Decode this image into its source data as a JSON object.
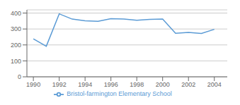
{
  "chart_data": {
    "type": "line",
    "x": [
      1990,
      1991,
      1992,
      1993,
      1994,
      1995,
      1996,
      1997,
      1998,
      1999,
      2000,
      2001,
      2002,
      2003,
      2004
    ],
    "series": [
      {
        "name": "Bristol-farmington Elementary School",
        "color": "#5b9bd5",
        "values": [
          238,
          192,
          395,
          362,
          352,
          348,
          365,
          362,
          355,
          360,
          362,
          273,
          278,
          272,
          298
        ]
      }
    ],
    "xlim": [
      1989.5,
      2005.0
    ],
    "ylim": [
      0,
      420
    ],
    "xticks": [
      1990,
      1992,
      1994,
      1996,
      1998,
      2000,
      2002,
      2004
    ],
    "yticks": [
      0,
      100,
      200,
      300,
      400
    ],
    "grid": true,
    "legend": "bottom"
  }
}
